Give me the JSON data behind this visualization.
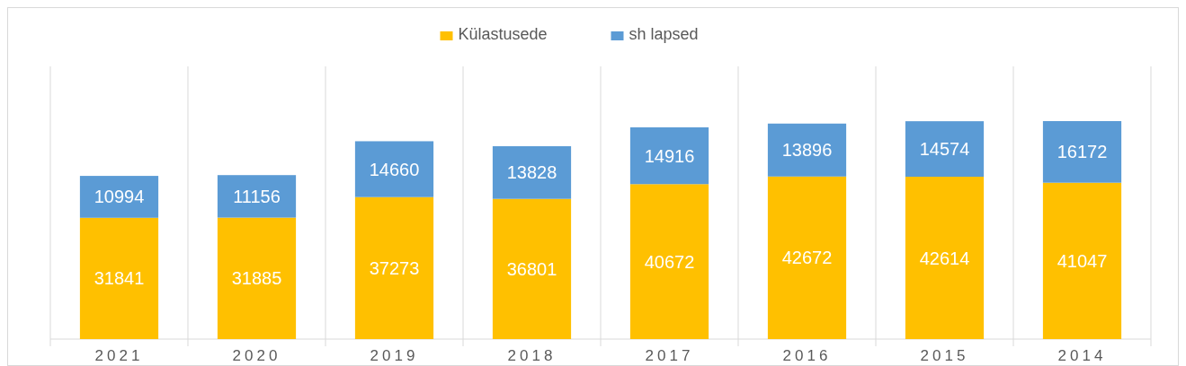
{
  "chart_data": {
    "type": "bar",
    "stacked": true,
    "data_labels": true,
    "grid": "x",
    "legend": "top",
    "categories": [
      "2021",
      "2020",
      "2019",
      "2018",
      "2017",
      "2016",
      "2015",
      "2014"
    ],
    "series": [
      {
        "name": "Külastusede",
        "color": "#ffc000",
        "values": [
          31841,
          31885,
          37273,
          36801,
          40672,
          42672,
          42614,
          41047
        ]
      },
      {
        "name": "sh lapsed",
        "color": "#5b9bd5",
        "values": [
          10994,
          11156,
          14660,
          13828,
          14916,
          13896,
          14574,
          16172
        ]
      }
    ]
  }
}
